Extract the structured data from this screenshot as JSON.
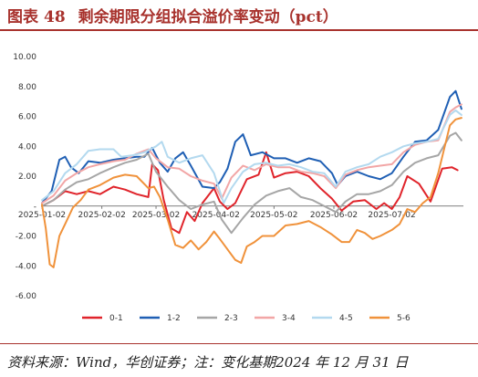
{
  "header": {
    "label": "图表",
    "number": "48",
    "title": "剩余期限分组拟合溢价率变动（pct）"
  },
  "footer": {
    "source": "资料来源：Wind，华创证券；注：变化基期2024 年 12 月 31 日"
  },
  "chart_data": {
    "type": "line",
    "ylim": [
      -6,
      10
    ],
    "yticks": [
      "10.00",
      "8.00",
      "6.00",
      "4.00",
      "2.00",
      "-",
      "-2.00",
      "-4.00",
      "-6.00"
    ],
    "xticks": [
      "2025-01-02",
      "2025-02-02",
      "2025-03-02",
      "2025-04-02",
      "2025-05-02",
      "2025-06-02",
      "2025-07-02"
    ],
    "x_range": [
      "2025-01-02",
      "2025-08-08"
    ],
    "grid": false,
    "legend_position": "bottom",
    "series": [
      {
        "name": "0-1",
        "color": "#e0242b",
        "points": [
          [
            "2025-01-02",
            0.0
          ],
          [
            "2025-01-08",
            0.4
          ],
          [
            "2025-01-14",
            1.0
          ],
          [
            "2025-01-20",
            0.8
          ],
          [
            "2025-01-26",
            1.0
          ],
          [
            "2025-02-01",
            0.8
          ],
          [
            "2025-02-08",
            1.3
          ],
          [
            "2025-02-14",
            1.1
          ],
          [
            "2025-02-20",
            0.8
          ],
          [
            "2025-02-26",
            0.6
          ],
          [
            "2025-02-28",
            2.8
          ],
          [
            "2025-03-03",
            2.4
          ],
          [
            "2025-03-06",
            0.4
          ],
          [
            "2025-03-10",
            -1.5
          ],
          [
            "2025-03-14",
            -1.8
          ],
          [
            "2025-03-18",
            -0.4
          ],
          [
            "2025-03-22",
            -1.0
          ],
          [
            "2025-03-26",
            0.2
          ],
          [
            "2025-04-01",
            1.2
          ],
          [
            "2025-04-04",
            0.3
          ],
          [
            "2025-04-08",
            -0.2
          ],
          [
            "2025-04-12",
            0.2
          ],
          [
            "2025-04-18",
            1.8
          ],
          [
            "2025-04-24",
            2.1
          ],
          [
            "2025-04-28",
            3.6
          ],
          [
            "2025-05-02",
            1.9
          ],
          [
            "2025-05-08",
            2.2
          ],
          [
            "2025-05-14",
            2.3
          ],
          [
            "2025-05-20",
            2.0
          ],
          [
            "2025-05-26",
            1.2
          ],
          [
            "2025-06-01",
            0.5
          ],
          [
            "2025-06-06",
            -0.3
          ],
          [
            "2025-06-12",
            0.3
          ],
          [
            "2025-06-18",
            0.4
          ],
          [
            "2025-06-24",
            -0.2
          ],
          [
            "2025-06-28",
            0.2
          ],
          [
            "2025-07-02",
            -0.2
          ],
          [
            "2025-07-06",
            0.6
          ],
          [
            "2025-07-10",
            2.0
          ],
          [
            "2025-07-16",
            1.5
          ],
          [
            "2025-07-22",
            0.3
          ],
          [
            "2025-07-28",
            2.5
          ],
          [
            "2025-08-02",
            2.6
          ],
          [
            "2025-08-05",
            2.4
          ]
        ]
      },
      {
        "name": "1-2",
        "color": "#1f5fb4",
        "points": [
          [
            "2025-01-02",
            0.2
          ],
          [
            "2025-01-07",
            1.0
          ],
          [
            "2025-01-11",
            3.1
          ],
          [
            "2025-01-14",
            3.3
          ],
          [
            "2025-01-17",
            2.6
          ],
          [
            "2025-01-21",
            2.2
          ],
          [
            "2025-01-26",
            3.0
          ],
          [
            "2025-02-01",
            2.9
          ],
          [
            "2025-02-08",
            3.1
          ],
          [
            "2025-02-14",
            3.2
          ],
          [
            "2025-02-20",
            3.3
          ],
          [
            "2025-02-24",
            3.3
          ],
          [
            "2025-02-28",
            3.9
          ],
          [
            "2025-03-04",
            2.9
          ],
          [
            "2025-03-08",
            2.3
          ],
          [
            "2025-03-12",
            3.2
          ],
          [
            "2025-03-16",
            3.6
          ],
          [
            "2025-03-20",
            2.7
          ],
          [
            "2025-03-26",
            1.3
          ],
          [
            "2025-04-01",
            1.2
          ],
          [
            "2025-04-04",
            1.6
          ],
          [
            "2025-04-08",
            2.5
          ],
          [
            "2025-04-12",
            4.3
          ],
          [
            "2025-04-16",
            4.8
          ],
          [
            "2025-04-20",
            3.4
          ],
          [
            "2025-04-26",
            3.6
          ],
          [
            "2025-05-02",
            3.2
          ],
          [
            "2025-05-08",
            3.2
          ],
          [
            "2025-05-14",
            2.9
          ],
          [
            "2025-05-20",
            3.2
          ],
          [
            "2025-05-26",
            3.0
          ],
          [
            "2025-06-01",
            2.2
          ],
          [
            "2025-06-04",
            1.4
          ],
          [
            "2025-06-08",
            2.0
          ],
          [
            "2025-06-14",
            2.3
          ],
          [
            "2025-06-20",
            2.0
          ],
          [
            "2025-06-26",
            1.8
          ],
          [
            "2025-07-02",
            2.2
          ],
          [
            "2025-07-08",
            3.3
          ],
          [
            "2025-07-14",
            4.3
          ],
          [
            "2025-07-20",
            4.4
          ],
          [
            "2025-07-26",
            5.1
          ],
          [
            "2025-08-01",
            7.3
          ],
          [
            "2025-08-04",
            7.7
          ],
          [
            "2025-08-07",
            6.5
          ]
        ]
      },
      {
        "name": "2-3",
        "color": "#a6a6a6",
        "points": [
          [
            "2025-01-02",
            0.0
          ],
          [
            "2025-01-08",
            0.4
          ],
          [
            "2025-01-14",
            1.1
          ],
          [
            "2025-01-20",
            1.6
          ],
          [
            "2025-01-26",
            1.8
          ],
          [
            "2025-02-01",
            2.2
          ],
          [
            "2025-02-08",
            2.6
          ],
          [
            "2025-02-14",
            2.9
          ],
          [
            "2025-02-20",
            3.1
          ],
          [
            "2025-02-26",
            3.5
          ],
          [
            "2025-03-02",
            2.3
          ],
          [
            "2025-03-08",
            1.3
          ],
          [
            "2025-03-14",
            0.4
          ],
          [
            "2025-03-20",
            -0.2
          ],
          [
            "2025-03-26",
            0.1
          ],
          [
            "2025-04-01",
            0.3
          ],
          [
            "2025-04-05",
            -0.9
          ],
          [
            "2025-04-10",
            -1.8
          ],
          [
            "2025-04-16",
            -0.8
          ],
          [
            "2025-04-22",
            0.1
          ],
          [
            "2025-04-28",
            0.7
          ],
          [
            "2025-05-04",
            1.0
          ],
          [
            "2025-05-10",
            1.2
          ],
          [
            "2025-05-16",
            0.6
          ],
          [
            "2025-05-22",
            0.4
          ],
          [
            "2025-05-28",
            0.0
          ],
          [
            "2025-06-03",
            -0.4
          ],
          [
            "2025-06-08",
            0.3
          ],
          [
            "2025-06-14",
            0.8
          ],
          [
            "2025-06-20",
            0.8
          ],
          [
            "2025-06-26",
            1.0
          ],
          [
            "2025-07-02",
            1.4
          ],
          [
            "2025-07-08",
            2.3
          ],
          [
            "2025-07-14",
            2.9
          ],
          [
            "2025-07-20",
            3.2
          ],
          [
            "2025-07-26",
            3.4
          ],
          [
            "2025-08-01",
            4.7
          ],
          [
            "2025-08-04",
            4.9
          ],
          [
            "2025-08-07",
            4.4
          ]
        ]
      },
      {
        "name": "3-4",
        "color": "#f2a6a6",
        "points": [
          [
            "2025-01-02",
            0.2
          ],
          [
            "2025-01-08",
            0.7
          ],
          [
            "2025-01-14",
            1.7
          ],
          [
            "2025-01-20",
            2.2
          ],
          [
            "2025-01-26",
            2.6
          ],
          [
            "2025-02-01",
            2.8
          ],
          [
            "2025-02-08",
            3.0
          ],
          [
            "2025-02-14",
            3.1
          ],
          [
            "2025-02-20",
            3.5
          ],
          [
            "2025-02-26",
            3.8
          ],
          [
            "2025-03-02",
            3.2
          ],
          [
            "2025-03-08",
            2.6
          ],
          [
            "2025-03-14",
            2.5
          ],
          [
            "2025-03-20",
            2.0
          ],
          [
            "2025-03-26",
            1.7
          ],
          [
            "2025-04-01",
            1.5
          ],
          [
            "2025-04-05",
            0.5
          ],
          [
            "2025-04-10",
            1.9
          ],
          [
            "2025-04-16",
            2.7
          ],
          [
            "2025-04-22",
            2.4
          ],
          [
            "2025-04-28",
            2.8
          ],
          [
            "2025-05-04",
            2.6
          ],
          [
            "2025-05-10",
            2.6
          ],
          [
            "2025-05-16",
            2.3
          ],
          [
            "2025-05-22",
            2.2
          ],
          [
            "2025-05-28",
            2.0
          ],
          [
            "2025-06-03",
            1.2
          ],
          [
            "2025-06-08",
            2.1
          ],
          [
            "2025-06-14",
            2.4
          ],
          [
            "2025-06-20",
            2.6
          ],
          [
            "2025-06-26",
            2.7
          ],
          [
            "2025-07-02",
            2.8
          ],
          [
            "2025-07-08",
            3.6
          ],
          [
            "2025-07-14",
            4.1
          ],
          [
            "2025-07-20",
            4.3
          ],
          [
            "2025-07-26",
            4.4
          ],
          [
            "2025-08-01",
            6.3
          ],
          [
            "2025-08-04",
            6.6
          ],
          [
            "2025-08-07",
            6.8
          ]
        ]
      },
      {
        "name": "4-5",
        "color": "#b3d9ef",
        "points": [
          [
            "2025-01-02",
            0.4
          ],
          [
            "2025-01-08",
            1.0
          ],
          [
            "2025-01-14",
            2.2
          ],
          [
            "2025-01-20",
            2.8
          ],
          [
            "2025-01-26",
            3.7
          ],
          [
            "2025-02-01",
            3.8
          ],
          [
            "2025-02-08",
            3.8
          ],
          [
            "2025-02-12",
            3.3
          ],
          [
            "2025-02-18",
            3.4
          ],
          [
            "2025-02-24",
            3.6
          ],
          [
            "2025-03-02",
            4.0
          ],
          [
            "2025-03-05",
            4.3
          ],
          [
            "2025-03-08",
            3.3
          ],
          [
            "2025-03-14",
            2.9
          ],
          [
            "2025-03-20",
            3.2
          ],
          [
            "2025-03-26",
            3.4
          ],
          [
            "2025-04-01",
            2.2
          ],
          [
            "2025-04-06",
            0.2
          ],
          [
            "2025-04-10",
            1.2
          ],
          [
            "2025-04-16",
            2.3
          ],
          [
            "2025-04-22",
            2.8
          ],
          [
            "2025-04-28",
            2.9
          ],
          [
            "2025-05-04",
            2.7
          ],
          [
            "2025-05-10",
            2.8
          ],
          [
            "2025-05-16",
            2.6
          ],
          [
            "2025-05-22",
            2.3
          ],
          [
            "2025-05-28",
            2.2
          ],
          [
            "2025-06-03",
            1.3
          ],
          [
            "2025-06-08",
            2.3
          ],
          [
            "2025-06-14",
            2.6
          ],
          [
            "2025-06-20",
            2.8
          ],
          [
            "2025-06-26",
            3.3
          ],
          [
            "2025-07-02",
            3.6
          ],
          [
            "2025-07-08",
            4.0
          ],
          [
            "2025-07-14",
            4.2
          ],
          [
            "2025-07-20",
            4.3
          ],
          [
            "2025-07-26",
            4.5
          ],
          [
            "2025-08-01",
            6.1
          ],
          [
            "2025-08-04",
            6.4
          ],
          [
            "2025-08-07",
            6.1
          ]
        ]
      },
      {
        "name": "5-6",
        "color": "#f0923b",
        "points": [
          [
            "2025-01-02",
            0.1
          ],
          [
            "2025-01-04",
            -1.5
          ],
          [
            "2025-01-06",
            -3.9
          ],
          [
            "2025-01-08",
            -4.1
          ],
          [
            "2025-01-11",
            -2.0
          ],
          [
            "2025-01-14",
            -1.2
          ],
          [
            "2025-01-18",
            -0.1
          ],
          [
            "2025-01-22",
            0.4
          ],
          [
            "2025-01-26",
            1.1
          ],
          [
            "2025-02-01",
            1.4
          ],
          [
            "2025-02-08",
            1.9
          ],
          [
            "2025-02-14",
            2.1
          ],
          [
            "2025-02-20",
            2.0
          ],
          [
            "2025-02-26",
            1.2
          ],
          [
            "2025-03-01",
            1.3
          ],
          [
            "2025-03-04",
            0.6
          ],
          [
            "2025-03-08",
            -0.9
          ],
          [
            "2025-03-12",
            -2.6
          ],
          [
            "2025-03-16",
            -2.8
          ],
          [
            "2025-03-20",
            -2.3
          ],
          [
            "2025-03-24",
            -2.9
          ],
          [
            "2025-03-28",
            -2.4
          ],
          [
            "2025-04-01",
            -1.7
          ],
          [
            "2025-04-04",
            -2.2
          ],
          [
            "2025-04-08",
            -2.9
          ],
          [
            "2025-04-12",
            -3.6
          ],
          [
            "2025-04-15",
            -3.8
          ],
          [
            "2025-04-18",
            -2.7
          ],
          [
            "2025-04-22",
            -2.4
          ],
          [
            "2025-04-26",
            -2.0
          ],
          [
            "2025-05-02",
            -2.0
          ],
          [
            "2025-05-08",
            -1.3
          ],
          [
            "2025-05-14",
            -1.2
          ],
          [
            "2025-05-20",
            -1.0
          ],
          [
            "2025-05-26",
            -1.4
          ],
          [
            "2025-06-01",
            -1.9
          ],
          [
            "2025-06-06",
            -2.4
          ],
          [
            "2025-06-10",
            -2.4
          ],
          [
            "2025-06-14",
            -1.6
          ],
          [
            "2025-06-18",
            -1.8
          ],
          [
            "2025-06-22",
            -2.2
          ],
          [
            "2025-06-26",
            -2.0
          ],
          [
            "2025-07-02",
            -1.6
          ],
          [
            "2025-07-06",
            -1.2
          ],
          [
            "2025-07-10",
            -0.2
          ],
          [
            "2025-07-14",
            -0.4
          ],
          [
            "2025-07-18",
            0.2
          ],
          [
            "2025-07-22",
            0.6
          ],
          [
            "2025-07-26",
            2.2
          ],
          [
            "2025-08-01",
            5.4
          ],
          [
            "2025-08-04",
            5.8
          ],
          [
            "2025-08-07",
            5.9
          ]
        ]
      }
    ]
  }
}
